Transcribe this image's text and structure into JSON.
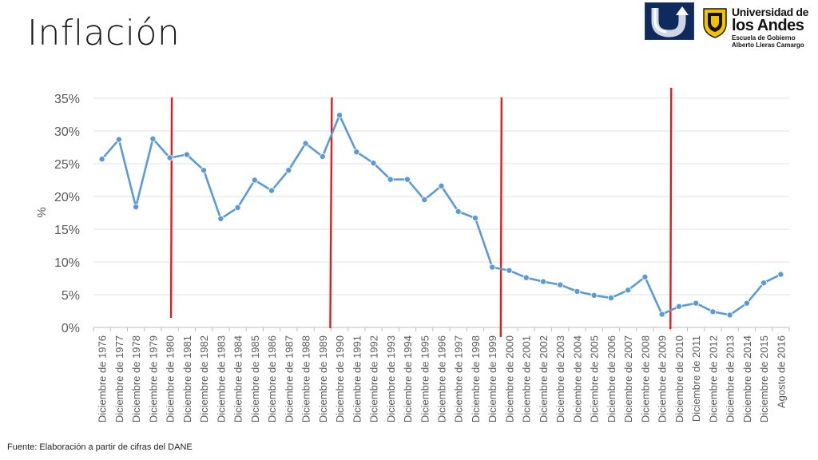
{
  "slide": {
    "title": "Inflación",
    "source": "Fuente: Elaboración a partir de cifras del DANE"
  },
  "logos": {
    "left_logo_icon": "uturn-arrow-logo",
    "uni_name_1": "Universidad de",
    "uni_name_2": "los Andes",
    "uni_name_3": "Escuela de Gobierno",
    "uni_name_4": "Alberto Lleras Camargo",
    "brand_navy": "#0f2a5c",
    "brand_gold": "#f2c200"
  },
  "chart_data": {
    "type": "line",
    "title": "",
    "xlabel": "",
    "ylabel": "%",
    "ylim": [
      0,
      35
    ],
    "y_ticks": [
      "0%",
      "5%",
      "10%",
      "15%",
      "20%",
      "25%",
      "30%",
      "35%"
    ],
    "grid": true,
    "line_color": "#5b9bd5",
    "marker_color": "#5b9bd5",
    "categories": [
      "Diciembre de 1976",
      "Diciembre de 1977",
      "Diciembre de 1978",
      "Diciembre de 1979",
      "Diciembre de 1980",
      "Diciembre de 1981",
      "Diciembre de 1982",
      "Diciembre de 1983",
      "Diciembre de 1984",
      "Diciembre de 1985",
      "Diciembre de 1986",
      "Diciembre de 1987",
      "Diciembre de 1988",
      "Diciembre de 1989",
      "Diciembre de 1990",
      "Diciembre de 1991",
      "Diciembre de 1992",
      "Diciembre de 1993",
      "Diciembre de 1994",
      "Diciembre de 1995",
      "Diciembre de 1996",
      "Diciembre de 1997",
      "Diciembre de 1998",
      "Diciembre de 1999",
      "Diciembre de 2000",
      "Diciembre de 2001",
      "Diciembre de 2002",
      "Diciembre de 2003",
      "Diciembre de 2004",
      "Diciembre de 2005",
      "Diciembre de 2006",
      "Diciembre de 2007",
      "Diciembre de 2008",
      "Diciembre de 2009",
      "Diciembre de 2010",
      "Diciembre de 2011",
      "Diciembre de 2012",
      "Diciembre de 2013",
      "Diciembre de 2014",
      "Diciembre de 2015",
      "Agosto de 2016"
    ],
    "series": [
      {
        "values": [
          25.7,
          28.7,
          18.4,
          28.8,
          25.9,
          26.4,
          24.0,
          16.6,
          18.3,
          22.5,
          20.9,
          24.0,
          28.1,
          26.1,
          32.4,
          26.8,
          25.1,
          22.6,
          22.6,
          19.5,
          21.6,
          17.7,
          16.7,
          9.2,
          8.7,
          7.6,
          7.0,
          6.5,
          5.5,
          4.9,
          4.5,
          5.7,
          7.7,
          2.0,
          3.2,
          3.7,
          2.4,
          1.9,
          3.7,
          6.8,
          8.1
        ]
      }
    ],
    "annotations": [
      {
        "type": "vertical-line",
        "color": "#e31b1b",
        "between": [
          "Diciembre de 1980",
          "Diciembre de 1980"
        ]
      },
      {
        "type": "vertical-line",
        "color": "#e31b1b",
        "between": [
          "Diciembre de 1989",
          "Diciembre de 1990"
        ]
      },
      {
        "type": "vertical-line",
        "color": "#e31b1b",
        "between": [
          "Diciembre de 1999",
          "Diciembre de 2000"
        ]
      },
      {
        "type": "vertical-line",
        "color": "#e31b1b",
        "between": [
          "Diciembre de 2009",
          "Diciembre de 2010"
        ]
      }
    ]
  }
}
